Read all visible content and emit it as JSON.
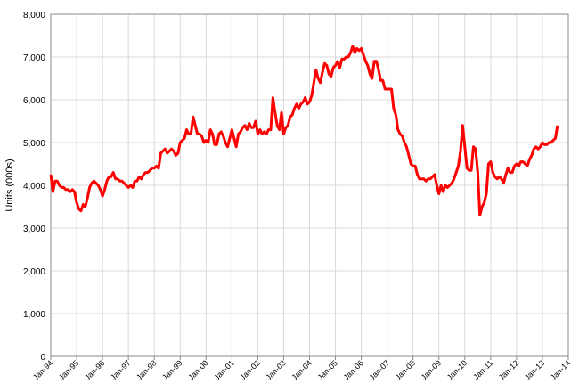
{
  "chart_data": {
    "type": "line",
    "y_label": "Units (000s)",
    "categories": [
      "Jan-94",
      null,
      null,
      null,
      null,
      null,
      null,
      null,
      null,
      null,
      null,
      null,
      "Jan-95",
      null,
      null,
      null,
      null,
      null,
      null,
      null,
      null,
      null,
      null,
      null,
      "Jan-96",
      null,
      null,
      null,
      null,
      null,
      null,
      null,
      null,
      null,
      null,
      null,
      "Jan-97",
      null,
      null,
      null,
      null,
      null,
      null,
      null,
      null,
      null,
      null,
      null,
      "Jan-98",
      null,
      null,
      null,
      null,
      null,
      null,
      null,
      null,
      null,
      null,
      null,
      "Jan-99",
      null,
      null,
      null,
      null,
      null,
      null,
      null,
      null,
      null,
      null,
      null,
      "Jan-00",
      null,
      null,
      null,
      null,
      null,
      null,
      null,
      null,
      null,
      null,
      null,
      "Jan-01",
      null,
      null,
      null,
      null,
      null,
      null,
      null,
      null,
      null,
      null,
      null,
      "Jan-02",
      null,
      null,
      null,
      null,
      null,
      null,
      null,
      null,
      null,
      null,
      null,
      "Jan-03",
      null,
      null,
      null,
      null,
      null,
      null,
      null,
      null,
      null,
      null,
      null,
      "Jan-04",
      null,
      null,
      null,
      null,
      null,
      null,
      null,
      null,
      null,
      null,
      null,
      "Jan-05",
      null,
      null,
      null,
      null,
      null,
      null,
      null,
      null,
      null,
      null,
      null,
      "Jan-06",
      null,
      null,
      null,
      null,
      null,
      null,
      null,
      null,
      null,
      null,
      null,
      "Jan-07",
      null,
      null,
      null,
      null,
      null,
      null,
      null,
      null,
      null,
      null,
      null,
      "Jan-08",
      null,
      null,
      null,
      null,
      null,
      null,
      null,
      null,
      null,
      null,
      null,
      "Jan-09",
      null,
      null,
      null,
      null,
      null,
      null,
      null,
      null,
      null,
      null,
      null,
      "Jan-10",
      null,
      null,
      null,
      null,
      null,
      null,
      null,
      null,
      null,
      null,
      null,
      "Jan-11",
      null,
      null,
      null,
      null,
      null,
      null,
      null,
      null,
      null,
      null,
      null,
      "Jan-12",
      null,
      null,
      null,
      null,
      null,
      null,
      null,
      null,
      null,
      null,
      null,
      "Jan-13",
      null,
      null,
      null,
      null,
      null,
      null,
      null,
      null,
      null,
      null,
      null,
      "Jan-14"
    ],
    "values": [
      4250,
      3850,
      4100,
      4100,
      4000,
      3950,
      3950,
      3900,
      3900,
      3850,
      3900,
      3850,
      3600,
      3450,
      3400,
      3550,
      3500,
      3700,
      3950,
      4050,
      4100,
      4050,
      4000,
      3900,
      3750,
      3900,
      4100,
      4200,
      4200,
      4300,
      4150,
      4150,
      4100,
      4100,
      4050,
      4000,
      3950,
      4000,
      3950,
      4100,
      4100,
      4200,
      4150,
      4250,
      4300,
      4300,
      4350,
      4400,
      4400,
      4450,
      4400,
      4750,
      4800,
      4850,
      4750,
      4800,
      4850,
      4800,
      4700,
      4750,
      5000,
      5050,
      5100,
      5300,
      5200,
      5200,
      5600,
      5400,
      5200,
      5200,
      5150,
      5000,
      5050,
      5000,
      5300,
      5200,
      4950,
      4950,
      5200,
      5250,
      5150,
      5000,
      4900,
      5100,
      5300,
      5100,
      4900,
      5200,
      5250,
      5350,
      5400,
      5300,
      5450,
      5350,
      5350,
      5500,
      5200,
      5300,
      5200,
      5250,
      5200,
      5300,
      5300,
      6050,
      5700,
      5400,
      5300,
      5700,
      5200,
      5350,
      5400,
      5600,
      5650,
      5800,
      5900,
      5800,
      5900,
      5950,
      6050,
      5900,
      5950,
      6100,
      6400,
      6700,
      6500,
      6400,
      6650,
      6850,
      6800,
      6600,
      6550,
      6750,
      6800,
      6900,
      6750,
      6950,
      6950,
      7000,
      7000,
      7100,
      7250,
      7100,
      7200,
      7150,
      7200,
      7050,
      6900,
      6800,
      6600,
      6500,
      6900,
      6900,
      6700,
      6450,
      6450,
      6250,
      6250,
      6250,
      6250,
      5800,
      5650,
      5300,
      5200,
      5150,
      5000,
      4900,
      4700,
      4500,
      4450,
      4450,
      4250,
      4150,
      4150,
      4150,
      4100,
      4150,
      4150,
      4200,
      4250,
      4000,
      3800,
      4000,
      3850,
      4000,
      3950,
      4000,
      4050,
      4150,
      4300,
      4450,
      4800,
      5400,
      4900,
      4400,
      4350,
      4350,
      4900,
      4850,
      4300,
      3300,
      3500,
      3600,
      3800,
      4500,
      4550,
      4300,
      4200,
      4150,
      4200,
      4150,
      4050,
      4250,
      4400,
      4300,
      4300,
      4450,
      4500,
      4450,
      4550,
      4550,
      4500,
      4450,
      4600,
      4700,
      4850,
      4900,
      4850,
      4900,
      5000,
      4950,
      4950,
      5000,
      5000,
      5050,
      5100,
      5400,
      null,
      null,
      null,
      null,
      null
    ],
    "color": "#ff0000",
    "ylim": [
      0,
      8000
    ],
    "yticks": [
      0,
      {
        "value": 1000,
        "label": "1,000"
      },
      {
        "value": 2000,
        "label": "2,000"
      },
      {
        "value": 3000,
        "label": "3,000"
      },
      {
        "value": 4000,
        "label": "4,000"
      },
      {
        "value": 5000,
        "label": "5,000"
      },
      {
        "value": 6000,
        "label": "6,000"
      },
      {
        "value": 7000,
        "label": "7,000"
      },
      {
        "value": 8000,
        "label": "8,000"
      }
    ],
    "grid": true
  }
}
